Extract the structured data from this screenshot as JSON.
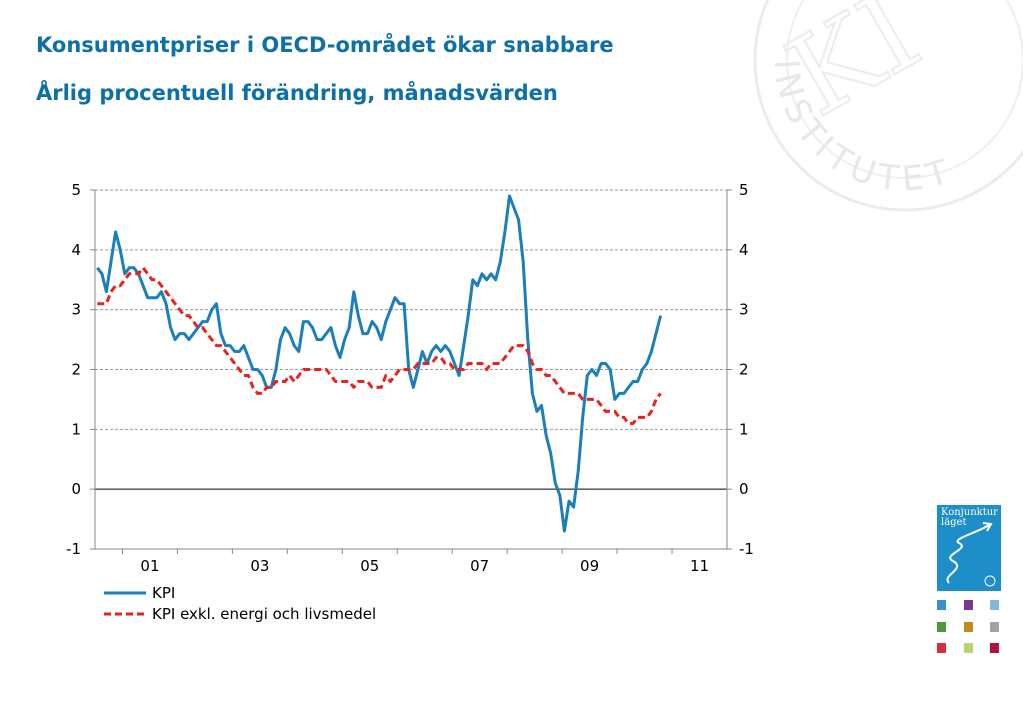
{
  "header": {
    "title": "Konsumentpriser i OECD-området ökar snabbare",
    "subtitle": "Årlig procentuell förändring, månadsvärden"
  },
  "brand": {
    "accent": "#0f6fa8",
    "logo_label": "Konjunktur läget",
    "watermark_text": "INSTITUTET"
  },
  "chart_data": {
    "type": "line",
    "title": "Konsumentpriser i OECD-området ökar snabbare",
    "subtitle": "Årlig procentuell förändring, månadsvärden",
    "xlabel": "",
    "ylabel": "",
    "x_start": "2000-07",
    "x_tick_labels": [
      "01",
      "03",
      "05",
      "07",
      "09",
      "11"
    ],
    "ylim": [
      -1,
      5
    ],
    "y_ticks": [
      -1,
      0,
      1,
      2,
      3,
      4,
      5
    ],
    "dual_y_axis": true,
    "grid": "horizontal dashed",
    "legend_position": "bottom-left",
    "series": [
      {
        "name": "KPI",
        "color": "#1a7fba",
        "style": "solid",
        "values": [
          3.7,
          3.6,
          3.3,
          3.8,
          4.3,
          4.0,
          3.6,
          3.7,
          3.7,
          3.6,
          3.4,
          3.2,
          3.2,
          3.2,
          3.3,
          3.1,
          2.7,
          2.5,
          2.6,
          2.6,
          2.5,
          2.6,
          2.7,
          2.8,
          2.8,
          3.0,
          3.1,
          2.6,
          2.4,
          2.4,
          2.3,
          2.3,
          2.4,
          2.2,
          2.0,
          2.0,
          1.9,
          1.7,
          1.7,
          2.0,
          2.5,
          2.7,
          2.6,
          2.4,
          2.3,
          2.8,
          2.8,
          2.7,
          2.5,
          2.5,
          2.6,
          2.7,
          2.4,
          2.2,
          2.5,
          2.7,
          3.3,
          2.9,
          2.6,
          2.6,
          2.8,
          2.7,
          2.5,
          2.8,
          3.0,
          3.2,
          3.1,
          3.1,
          2.0,
          1.7,
          2.0,
          2.3,
          2.1,
          2.3,
          2.4,
          2.3,
          2.4,
          2.3,
          2.1,
          1.9,
          2.4,
          2.9,
          3.5,
          3.4,
          3.6,
          3.5,
          3.6,
          3.5,
          3.8,
          4.3,
          4.9,
          4.7,
          4.5,
          3.8,
          2.5,
          1.6,
          1.3,
          1.4,
          0.9,
          0.6,
          0.1,
          -0.1,
          -0.7,
          -0.2,
          -0.3,
          0.3,
          1.2,
          1.9,
          2.0,
          1.9,
          2.1,
          2.1,
          2.0,
          1.5,
          1.6,
          1.6,
          1.7,
          1.8,
          1.8,
          2.0,
          2.1,
          2.3,
          2.6,
          2.9
        ]
      },
      {
        "name": "KPI exkl. energi och livsmedel",
        "color": "#e8231f",
        "style": "dashed",
        "values": [
          3.1,
          3.1,
          3.1,
          3.3,
          3.4,
          3.4,
          3.5,
          3.6,
          3.6,
          3.6,
          3.7,
          3.6,
          3.5,
          3.5,
          3.4,
          3.3,
          3.2,
          3.1,
          3.0,
          2.9,
          2.9,
          2.8,
          2.7,
          2.7,
          2.6,
          2.5,
          2.4,
          2.4,
          2.3,
          2.2,
          2.1,
          2.0,
          1.9,
          1.9,
          1.7,
          1.6,
          1.6,
          1.7,
          1.7,
          1.8,
          1.8,
          1.8,
          1.9,
          1.8,
          1.9,
          2.0,
          2.0,
          2.0,
          2.0,
          2.0,
          2.0,
          1.9,
          1.8,
          1.8,
          1.8,
          1.8,
          1.7,
          1.8,
          1.8,
          1.8,
          1.7,
          1.7,
          1.7,
          1.9,
          1.8,
          1.9,
          2.0,
          2.0,
          2.0,
          2.0,
          2.1,
          2.1,
          2.1,
          2.1,
          2.2,
          2.2,
          2.1,
          2.1,
          2.0,
          2.0,
          2.0,
          2.1,
          2.1,
          2.1,
          2.1,
          2.0,
          2.1,
          2.1,
          2.1,
          2.2,
          2.3,
          2.4,
          2.4,
          2.4,
          2.3,
          2.1,
          2.0,
          2.0,
          1.9,
          1.9,
          1.8,
          1.7,
          1.6,
          1.6,
          1.6,
          1.6,
          1.5,
          1.5,
          1.5,
          1.5,
          1.4,
          1.3,
          1.3,
          1.3,
          1.2,
          1.2,
          1.1,
          1.1,
          1.2,
          1.2,
          1.2,
          1.3,
          1.5,
          1.6
        ]
      }
    ]
  }
}
